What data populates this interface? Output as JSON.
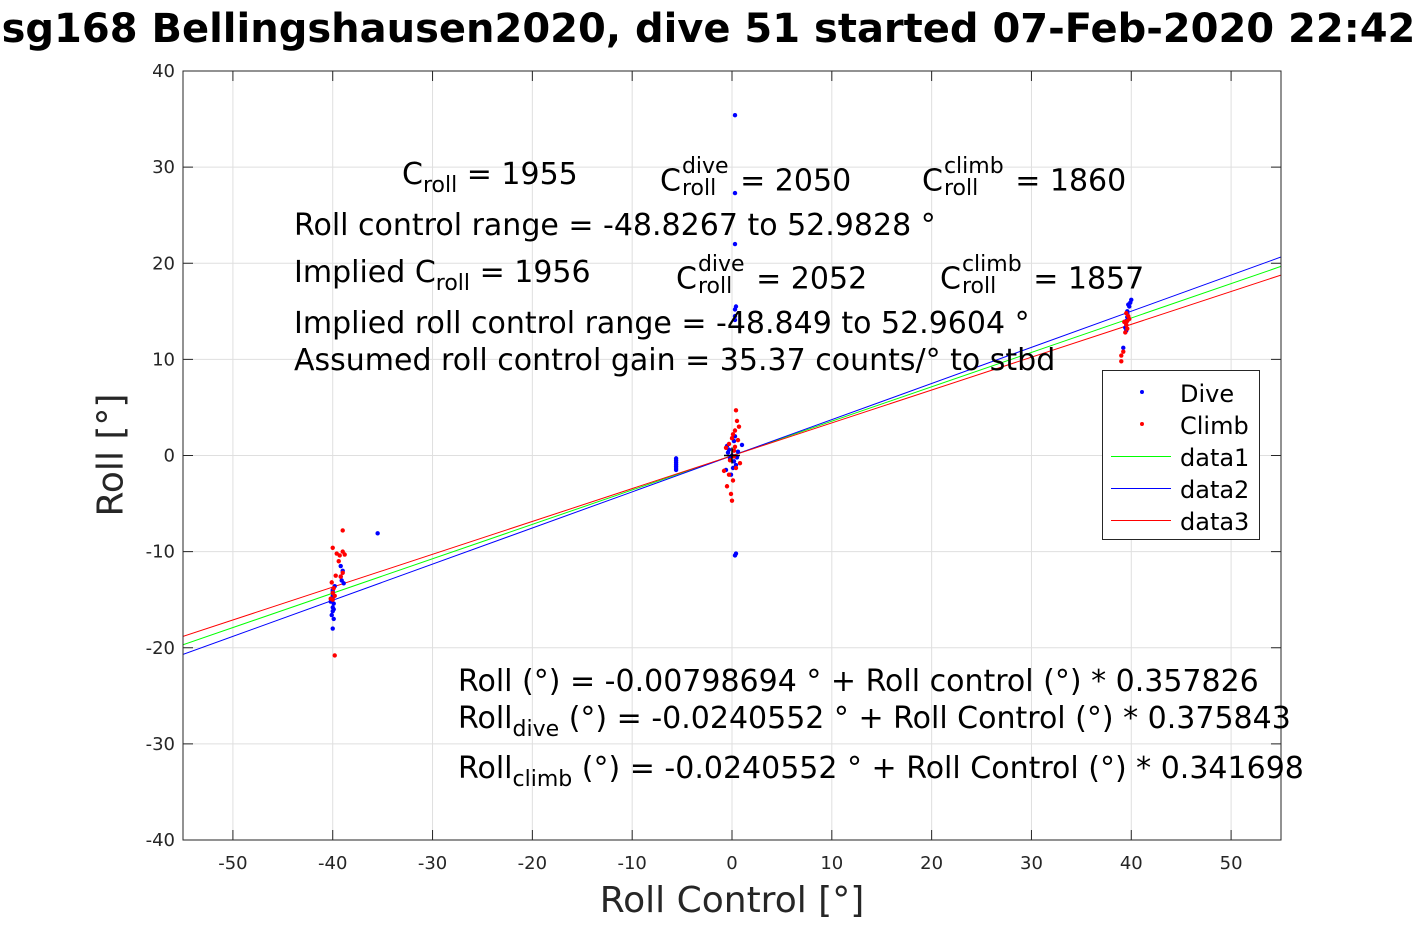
{
  "title": "sg168 Bellingshausen2020, dive 51 started 07-Feb-2020 22:42",
  "annotations": {
    "c_roll": "C",
    "c_roll_sub": "roll",
    "c_roll_val": " = 1955",
    "c_dive": "C",
    "c_dive_sup": "dive",
    "c_dive_sub": "roll",
    "c_dive_val": " = 2050",
    "c_climb": "C",
    "c_climb_sup": "climb",
    "c_climb_sub": "roll",
    "c_climb_val": " = 1860",
    "range": "Roll control range = -48.8267 to 52.9828 °",
    "implied_prefix": "Implied C",
    "implied_sub": "roll",
    "implied_val": " = 1956",
    "implied_dive": "C",
    "implied_dive_sup": "dive",
    "implied_dive_sub": "roll",
    "implied_dive_val": " = 2052",
    "implied_climb": "C",
    "implied_climb_sup": "climb",
    "implied_climb_sub": "roll",
    "implied_climb_val": " = 1857",
    "implied_range": "Implied roll control range = -48.849 to 52.9604 °",
    "gain": "Assumed roll control gain = 35.37 counts/° to stbd",
    "eq1": "Roll (°) = -0.00798694 ° + Roll control (°) * 0.357826",
    "eq2_prefix": "Roll",
    "eq2_sub": "dive",
    "eq2_rest": " (°) = -0.0240552 ° + Roll Control (°) * 0.375843",
    "eq3_prefix": "Roll",
    "eq3_sub": "climb",
    "eq3_rest": " (°) = -0.0240552 ° + Roll Control (°) * 0.341698"
  },
  "legend": [
    {
      "label": "Dive",
      "kind": "dots",
      "color": "#0000ff"
    },
    {
      "label": "Climb",
      "kind": "dots",
      "color": "#ff0000"
    },
    {
      "label": "data1",
      "kind": "line",
      "color": "#00ff00"
    },
    {
      "label": "data2",
      "kind": "line",
      "color": "#0000ff"
    },
    {
      "label": "data3",
      "kind": "line",
      "color": "#ff0000"
    }
  ],
  "chart_data": {
    "type": "scatter",
    "xlabel": "Roll Control [°]",
    "ylabel": "Roll [°]",
    "xlim": [
      -55,
      55
    ],
    "ylim": [
      -40,
      40
    ],
    "xticks": [
      -50,
      -40,
      -30,
      -20,
      -10,
      0,
      10,
      20,
      30,
      40,
      50
    ],
    "yticks": [
      -40,
      -30,
      -20,
      -10,
      0,
      10,
      20,
      30,
      40
    ],
    "grid": true,
    "legend_position": "right",
    "series": [
      {
        "name": "Dive",
        "kind": "scatter",
        "color": "#0000ff",
        "points": [
          [
            -40.0,
            -14.0
          ],
          [
            -40.0,
            -14.6
          ],
          [
            -40.1,
            -15.0
          ],
          [
            -39.9,
            -15.4
          ],
          [
            -40.0,
            -15.8
          ],
          [
            -40.0,
            -16.2
          ],
          [
            -40.1,
            -16.6
          ],
          [
            -39.9,
            -17.0
          ],
          [
            -40.0,
            -18.0
          ],
          [
            -40.0,
            -14.2
          ],
          [
            -39.8,
            -13.6
          ],
          [
            -40.2,
            -15.2
          ],
          [
            -40.0,
            -14.8
          ],
          [
            -39.9,
            -16.0
          ],
          [
            -39.2,
            -11.5
          ],
          [
            -39.2,
            -12.6
          ],
          [
            -39.1,
            -13.0
          ],
          [
            -38.9,
            -13.3
          ],
          [
            -39.0,
            -12.0
          ],
          [
            -35.5,
            -8.1
          ],
          [
            -5.6,
            -0.3
          ],
          [
            -5.6,
            -0.5
          ],
          [
            -5.6,
            -0.7
          ],
          [
            -5.6,
            -0.9
          ],
          [
            -5.6,
            -1.1
          ],
          [
            -5.6,
            -1.3
          ],
          [
            -5.6,
            -1.5
          ],
          [
            0.3,
            35.4
          ],
          [
            0.3,
            27.3
          ],
          [
            0.3,
            22.0
          ],
          [
            0.4,
            15.5
          ],
          [
            0.3,
            15.2
          ],
          [
            0.3,
            14.5
          ],
          [
            0.3,
            14.1
          ],
          [
            0.4,
            -10.2
          ],
          [
            0.3,
            -10.4
          ],
          [
            0.0,
            0.0
          ],
          [
            -0.3,
            0.6
          ],
          [
            0.2,
            -0.6
          ],
          [
            -0.5,
            1.0
          ],
          [
            0.4,
            -1.0
          ],
          [
            0.6,
            0.4
          ],
          [
            -0.2,
            -0.3
          ],
          [
            1.0,
            1.1
          ],
          [
            -0.6,
            -1.5
          ],
          [
            0.3,
            2.0
          ],
          [
            -0.1,
            -2.0
          ],
          [
            0.2,
            1.5
          ],
          [
            0.5,
            -0.2
          ],
          [
            -0.4,
            0.3
          ],
          [
            0.1,
            -1.3
          ],
          [
            39.5,
            13.0
          ],
          [
            39.5,
            13.6
          ],
          [
            39.5,
            14.0
          ],
          [
            39.6,
            14.4
          ],
          [
            39.6,
            15.0
          ],
          [
            39.8,
            15.5
          ],
          [
            39.9,
            15.9
          ],
          [
            40.0,
            16.2
          ],
          [
            39.7,
            15.7
          ],
          [
            39.4,
            13.3
          ],
          [
            39.6,
            14.8
          ],
          [
            39.2,
            11.2
          ]
        ]
      },
      {
        "name": "Climb",
        "kind": "scatter",
        "color": "#ff0000",
        "points": [
          [
            -39.8,
            -20.8
          ],
          [
            -40.0,
            -9.6
          ],
          [
            -39.6,
            -10.2
          ],
          [
            -39.4,
            -11.0
          ],
          [
            -40.1,
            -13.2
          ],
          [
            -39.9,
            -13.8
          ],
          [
            -40.0,
            -14.3
          ],
          [
            -39.8,
            -14.6
          ],
          [
            -40.2,
            -14.9
          ],
          [
            -39.7,
            -12.5
          ],
          [
            -40.0,
            -15.0
          ],
          [
            -39.0,
            -7.8
          ],
          [
            -39.0,
            -10.0
          ],
          [
            -39.3,
            -10.4
          ],
          [
            -39.0,
            -12.2
          ],
          [
            -39.2,
            -12.6
          ],
          [
            -38.8,
            -10.3
          ],
          [
            0.4,
            4.7
          ],
          [
            0.5,
            3.6
          ],
          [
            0.7,
            3.0
          ],
          [
            0.3,
            2.6
          ],
          [
            0.0,
            1.8
          ],
          [
            -0.3,
            1.2
          ],
          [
            0.2,
            0.5
          ],
          [
            -0.2,
            -0.5
          ],
          [
            0.4,
            -1.3
          ],
          [
            -0.3,
            -2.0
          ],
          [
            0.1,
            -2.6
          ],
          [
            -0.5,
            -3.2
          ],
          [
            0.0,
            -4.7
          ],
          [
            -0.1,
            -4.0
          ],
          [
            0.6,
            1.6
          ],
          [
            -0.6,
            0.8
          ],
          [
            0.2,
            -0.1
          ],
          [
            0.8,
            -0.8
          ],
          [
            -0.8,
            -1.6
          ],
          [
            0.3,
            0.9
          ],
          [
            0.1,
            2.2
          ],
          [
            39.0,
            9.8
          ],
          [
            39.0,
            10.4
          ],
          [
            39.2,
            10.8
          ],
          [
            39.4,
            12.8
          ],
          [
            39.6,
            13.2
          ],
          [
            39.5,
            13.6
          ],
          [
            39.6,
            14.0
          ],
          [
            39.7,
            14.5
          ],
          [
            39.5,
            14.8
          ],
          [
            39.8,
            14.2
          ],
          [
            39.3,
            13.9
          ]
        ]
      },
      {
        "name": "data1",
        "kind": "line",
        "color": "#00ff00",
        "x": [
          -55,
          55
        ],
        "y": [
          -19.688,
          19.672
        ]
      },
      {
        "name": "data2",
        "kind": "line",
        "color": "#0000ff",
        "x": [
          -55,
          55
        ],
        "y": [
          -20.695,
          20.647
        ]
      },
      {
        "name": "data3",
        "kind": "line",
        "color": "#ff0000",
        "x": [
          -55,
          55
        ],
        "y": [
          -18.817,
          18.769
        ]
      }
    ]
  }
}
